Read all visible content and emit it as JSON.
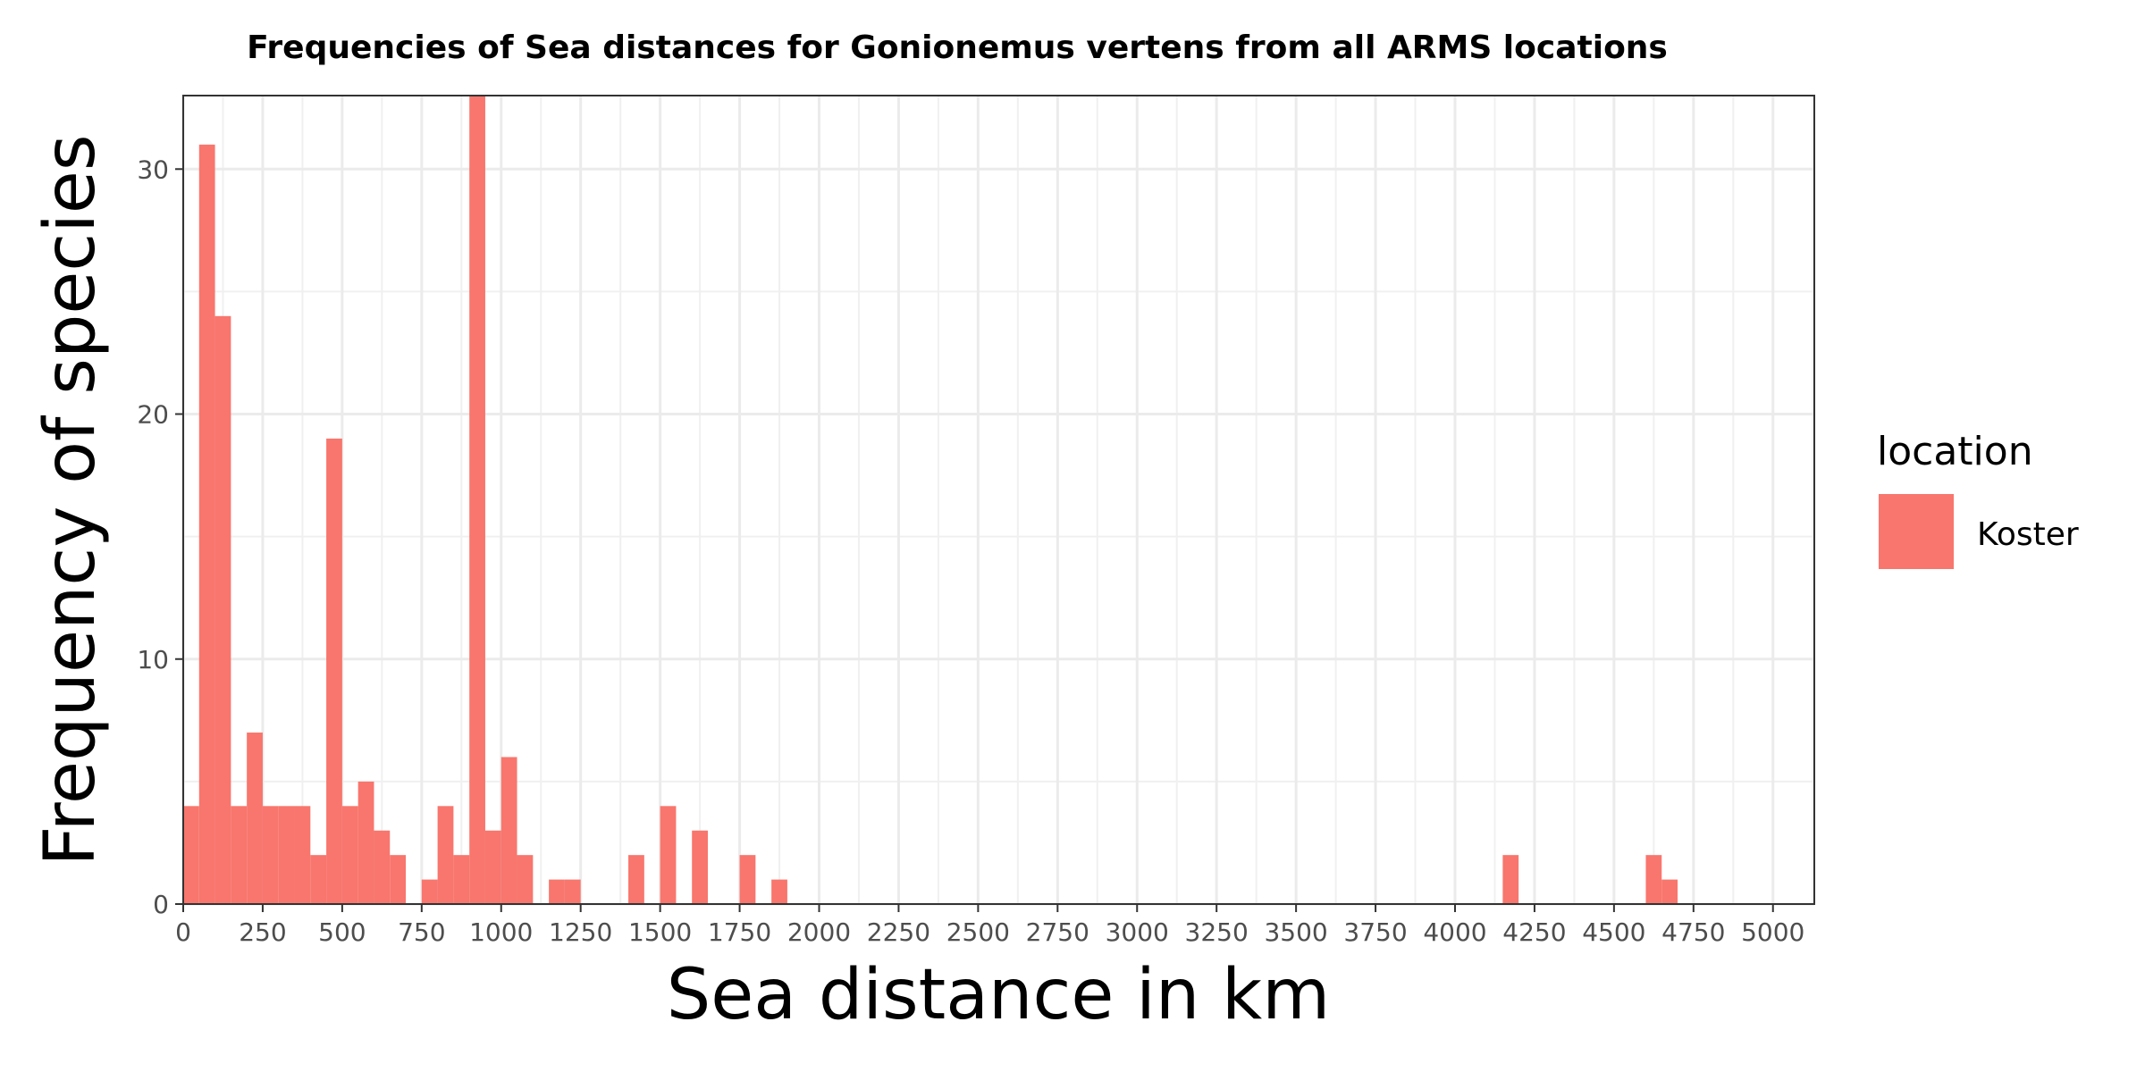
{
  "chart_data": {
    "type": "bar",
    "title": "Frequencies of Sea distances for Gonionemus vertens from all ARMS locations",
    "xlabel": "Sea distance in km",
    "ylabel": "Frequency of species",
    "xlim": [
      0,
      5130
    ],
    "ylim": [
      0,
      33
    ],
    "x_ticks": [
      0,
      250,
      500,
      750,
      1000,
      1250,
      1500,
      1750,
      2000,
      2250,
      2500,
      2750,
      3000,
      3250,
      3500,
      3750,
      4000,
      4250,
      4500,
      4750,
      5000
    ],
    "y_ticks": [
      0,
      10,
      20,
      30
    ],
    "grid": true,
    "legend_position": "right",
    "legend_title": "location",
    "bin_width": 50,
    "series": [
      {
        "name": "Koster",
        "color": "#F8766D",
        "bin_starts": [
          0,
          50,
          100,
          150,
          200,
          250,
          300,
          350,
          400,
          450,
          500,
          550,
          600,
          650,
          750,
          800,
          850,
          900,
          950,
          1000,
          1050,
          1150,
          1200,
          1400,
          1500,
          1600,
          1750,
          1850,
          4150,
          4600,
          4650
        ],
        "values": [
          4,
          31,
          24,
          4,
          7,
          4,
          4,
          4,
          2,
          19,
          4,
          5,
          3,
          2,
          1,
          4,
          2,
          33,
          3,
          6,
          2,
          1,
          1,
          2,
          4,
          3,
          2,
          1,
          2,
          2,
          1
        ]
      }
    ]
  }
}
